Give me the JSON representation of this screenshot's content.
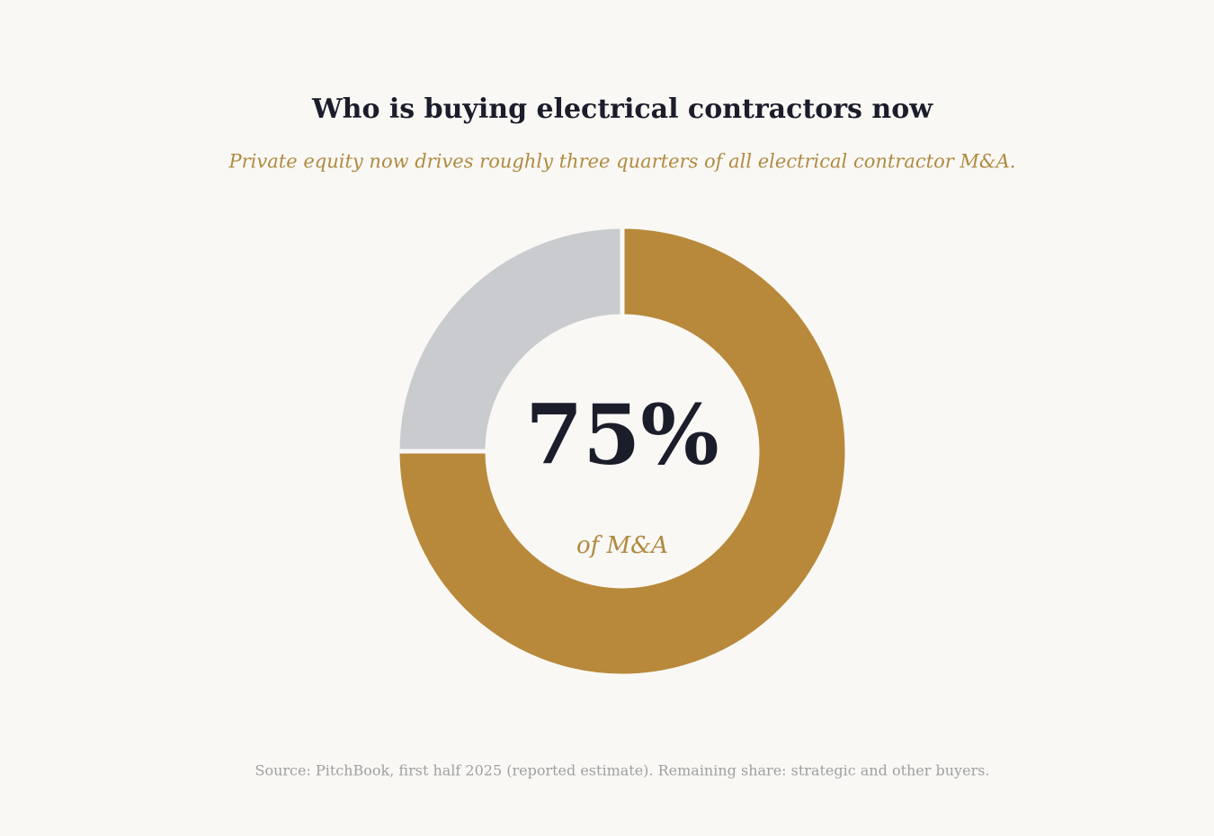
{
  "chart_data": {
    "type": "donut",
    "title": "Who is buying electrical contractors now",
    "subtitle": "Private equity now drives roughly three quarters of all electrical contractor M&A.",
    "values": [
      75,
      25
    ],
    "value_labels": [
      "75%",
      null
    ],
    "colors": [
      "#b8893a",
      "#c9cbcf"
    ],
    "center_caption": "of M&A",
    "source": "Source: PitchBook, first half 2025 (reported estimate). Remaining share: strategic and other buyers."
  }
}
